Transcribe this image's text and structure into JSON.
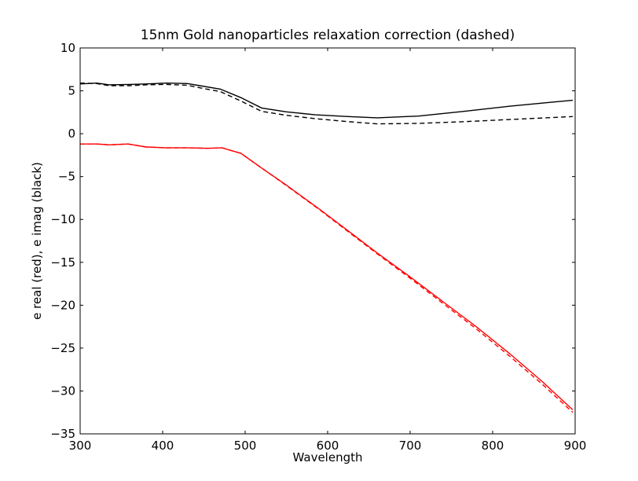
{
  "chart_data": {
    "type": "line",
    "title": "15nm Gold nanoparticles relaxation correction (dashed)",
    "xlabel": "Wavelength",
    "ylabel": "e real (red), e imag (black)",
    "xlim": [
      300,
      900
    ],
    "ylim": [
      -35,
      10
    ],
    "xticks": [
      300,
      400,
      500,
      600,
      700,
      800,
      900
    ],
    "yticks": [
      -35,
      -30,
      -25,
      -20,
      -15,
      -10,
      -5,
      0,
      5,
      10
    ],
    "grid": false,
    "series": [
      {
        "color": "#000000",
        "dashed": false,
        "points": [
          [
            300,
            5.8
          ],
          [
            320,
            5.9
          ],
          [
            335,
            5.7
          ],
          [
            360,
            5.75
          ],
          [
            380,
            5.8
          ],
          [
            405,
            5.9
          ],
          [
            430,
            5.85
          ],
          [
            445,
            5.6
          ],
          [
            470,
            5.2
          ],
          [
            495,
            4.2
          ],
          [
            520,
            3.0
          ],
          [
            550,
            2.55
          ],
          [
            585,
            2.2
          ],
          [
            625,
            2.0
          ],
          [
            660,
            1.85
          ],
          [
            710,
            2.05
          ],
          [
            765,
            2.6
          ],
          [
            820,
            3.2
          ],
          [
            875,
            3.7
          ],
          [
            897,
            3.9
          ]
        ]
      },
      {
        "color": "#000000",
        "dashed": true,
        "points": [
          [
            300,
            5.9
          ],
          [
            320,
            5.85
          ],
          [
            335,
            5.6
          ],
          [
            360,
            5.6
          ],
          [
            380,
            5.7
          ],
          [
            405,
            5.75
          ],
          [
            430,
            5.65
          ],
          [
            445,
            5.35
          ],
          [
            470,
            4.9
          ],
          [
            495,
            3.8
          ],
          [
            520,
            2.6
          ],
          [
            550,
            2.15
          ],
          [
            585,
            1.75
          ],
          [
            625,
            1.4
          ],
          [
            660,
            1.15
          ],
          [
            710,
            1.2
          ],
          [
            765,
            1.4
          ],
          [
            820,
            1.65
          ],
          [
            875,
            1.9
          ],
          [
            897,
            2.0
          ]
        ]
      },
      {
        "color": "#ff0000",
        "dashed": false,
        "points": [
          [
            300,
            -1.2
          ],
          [
            320,
            -1.2
          ],
          [
            335,
            -1.3
          ],
          [
            358,
            -1.2
          ],
          [
            380,
            -1.55
          ],
          [
            405,
            -1.65
          ],
          [
            430,
            -1.65
          ],
          [
            455,
            -1.7
          ],
          [
            472,
            -1.65
          ],
          [
            495,
            -2.3
          ],
          [
            520,
            -4.0
          ],
          [
            550,
            -6.0
          ],
          [
            590,
            -8.8
          ],
          [
            630,
            -11.7
          ],
          [
            660,
            -13.9
          ],
          [
            700,
            -16.7
          ],
          [
            740,
            -19.6
          ],
          [
            780,
            -22.5
          ],
          [
            820,
            -25.6
          ],
          [
            860,
            -28.9
          ],
          [
            897,
            -32.2
          ]
        ]
      },
      {
        "color": "#ff0000",
        "dashed": true,
        "points": [
          [
            300,
            -1.2
          ],
          [
            320,
            -1.2
          ],
          [
            335,
            -1.3
          ],
          [
            358,
            -1.2
          ],
          [
            380,
            -1.55
          ],
          [
            405,
            -1.65
          ],
          [
            430,
            -1.65
          ],
          [
            455,
            -1.7
          ],
          [
            472,
            -1.65
          ],
          [
            495,
            -2.3
          ],
          [
            520,
            -4.0
          ],
          [
            550,
            -6.05
          ],
          [
            590,
            -8.85
          ],
          [
            630,
            -11.8
          ],
          [
            660,
            -14.0
          ],
          [
            700,
            -16.85
          ],
          [
            740,
            -19.8
          ],
          [
            780,
            -22.75
          ],
          [
            820,
            -25.9
          ],
          [
            860,
            -29.2
          ],
          [
            897,
            -32.5
          ]
        ]
      }
    ]
  }
}
